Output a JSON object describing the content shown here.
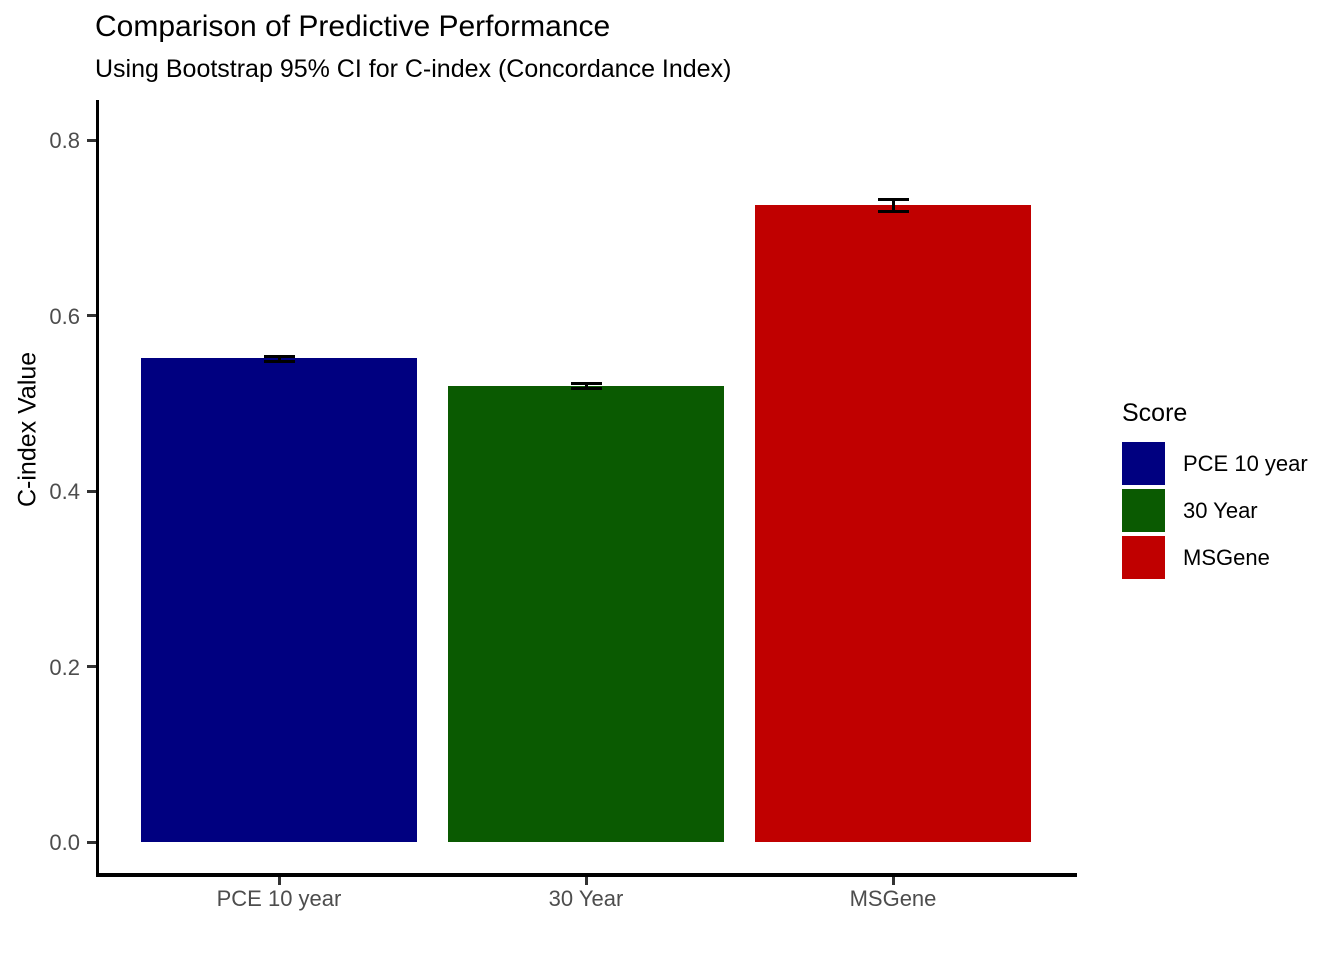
{
  "chart_data": {
    "type": "bar",
    "title": "Comparison of Predictive Performance",
    "subtitle": "Using Bootstrap 95% CI for C-index (Concordance Index)",
    "xlabel": "",
    "ylabel": "C-index Value",
    "categories": [
      "PCE 10 year",
      "30 Year",
      "MSGene"
    ],
    "values": [
      0.551,
      0.52,
      0.726
    ],
    "error_bars_95ci": [
      {
        "low": 0.548,
        "high": 0.553
      },
      {
        "low": 0.517,
        "high": 0.523
      },
      {
        "low": 0.719,
        "high": 0.732
      }
    ],
    "bar_colors": [
      "#000080",
      "#0A5A01",
      "#C00000"
    ],
    "error_bar_color": "#000000",
    "ytick_labels": [
      "0.0",
      "0.2",
      "0.4",
      "0.6",
      "0.8"
    ],
    "ytick_values": [
      0,
      0.2,
      0.4,
      0.6,
      0.8
    ],
    "ylim": [
      -0.037,
      0.846
    ],
    "grid": false,
    "axis_line_color": "#000000",
    "axis_text_color": "#4D4D4D",
    "background": "#FFFFFF",
    "legend": {
      "title": "Score",
      "position": "right",
      "entries": [
        {
          "label": "PCE 10 year",
          "color": "#000080"
        },
        {
          "label": "30 Year",
          "color": "#0A5A01"
        },
        {
          "label": "MSGene",
          "color": "#C00000"
        }
      ]
    }
  }
}
